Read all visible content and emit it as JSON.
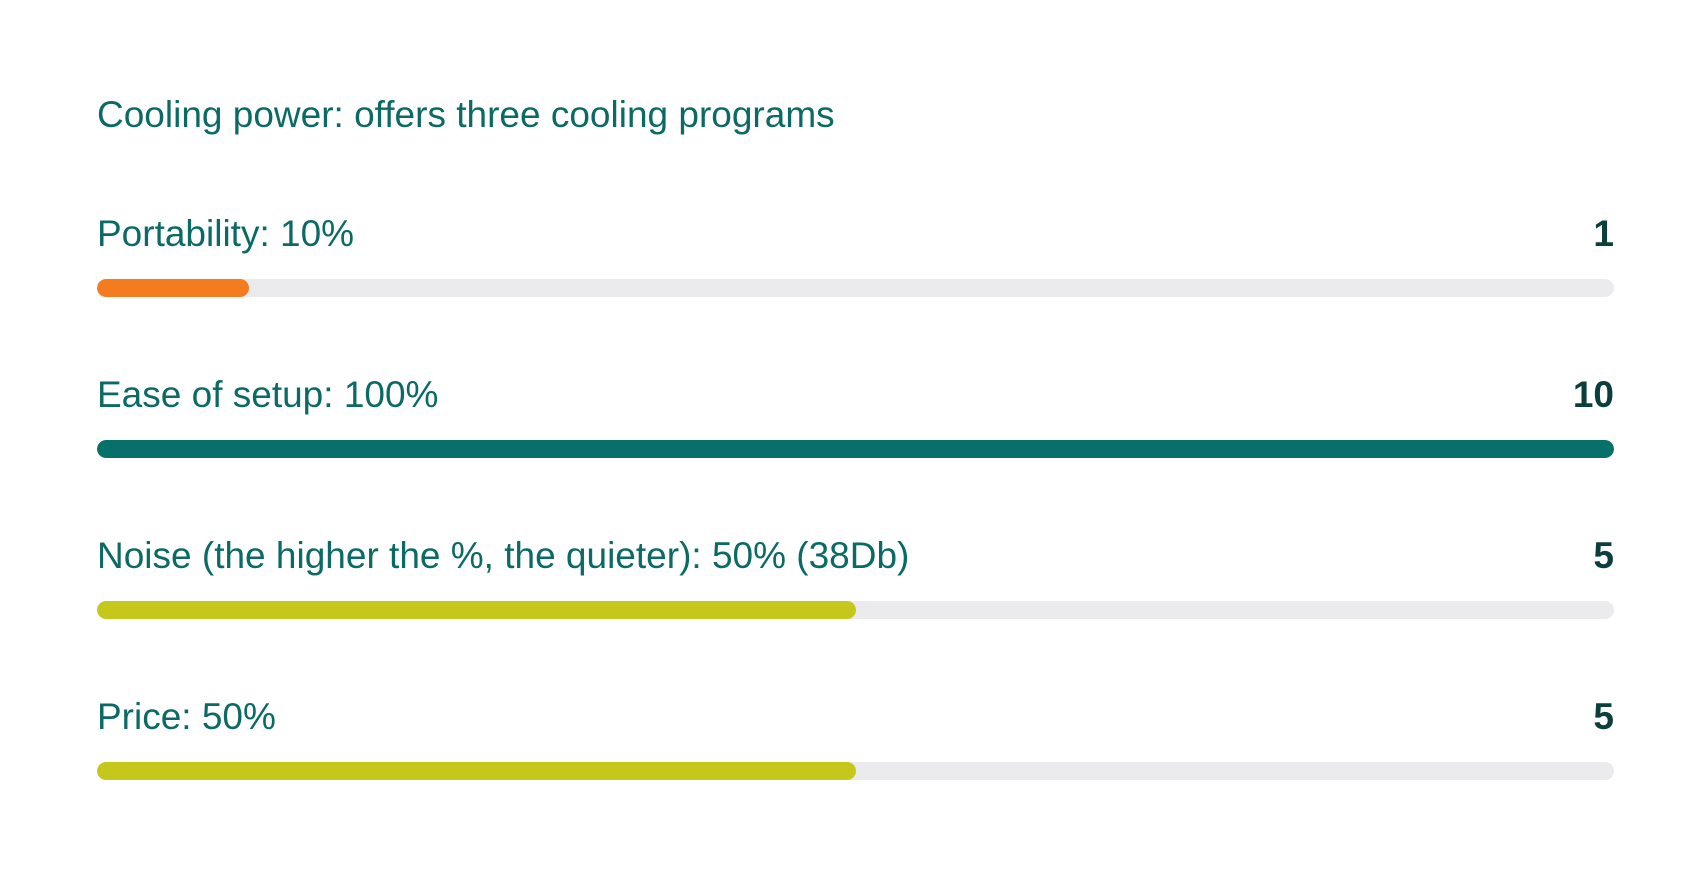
{
  "title": "Cooling power: offers three cooling programs",
  "ratings": [
    {
      "label": "Portability: 10%",
      "score": "1",
      "fill_fraction": 0.1,
      "color": "#f47b20"
    },
    {
      "label": "Ease of setup: 100%",
      "score": "10",
      "fill_fraction": 1.0,
      "color": "#07706a"
    },
    {
      "label": "Noise (the higher the %, the quieter): 50% (38Db)",
      "score": "5",
      "fill_fraction": 0.5,
      "color": "#c5c71b"
    },
    {
      "label": "Price: 50%",
      "score": "5",
      "fill_fraction": 0.5,
      "color": "#c5c71b"
    }
  ],
  "colors": {
    "text": "#0b6b64",
    "score_text": "#0b3f3b",
    "track": "#ebebee"
  }
}
